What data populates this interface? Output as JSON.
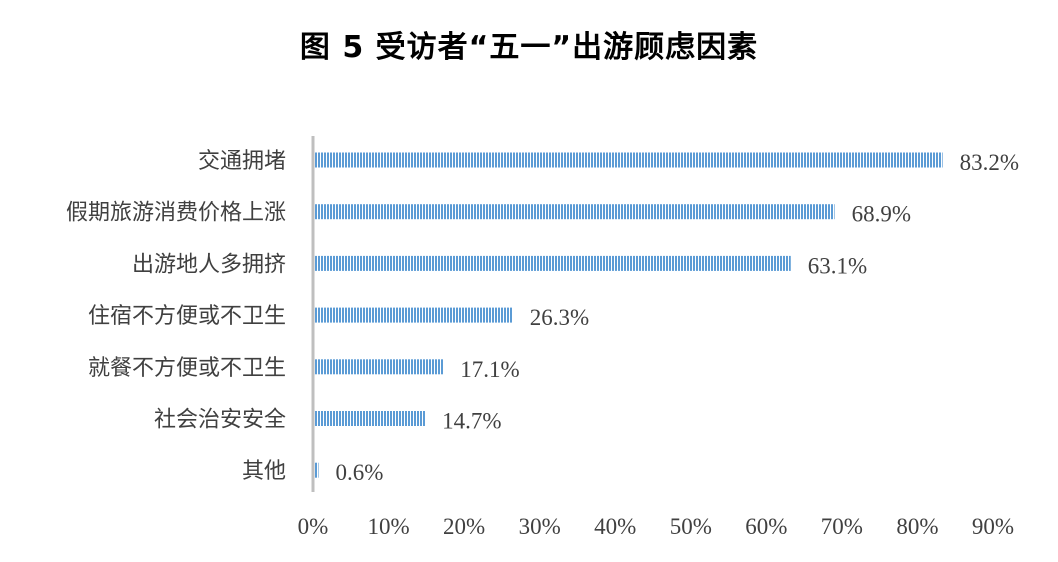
{
  "chart_data": {
    "type": "bar",
    "orientation": "horizontal",
    "title": "图 5  受访者“五一”出游顾虑因素",
    "categories": [
      "交通拥堵",
      "假期旅游消费价格上涨",
      "出游地人多拥挤",
      "住宿不方便或不卫生",
      "就餐不方便或不卫生",
      "社会治安安全",
      "其他"
    ],
    "values": [
      83.2,
      68.9,
      63.1,
      26.3,
      17.1,
      14.7,
      0.6
    ],
    "value_labels": [
      "83.2%",
      "68.9%",
      "63.1%",
      "26.3%",
      "17.1%",
      "14.7%",
      "0.6%"
    ],
    "xlim": [
      0,
      90
    ],
    "xticks": [
      0,
      10,
      20,
      30,
      40,
      50,
      60,
      70,
      80,
      90
    ],
    "xtick_labels": [
      "0%",
      "10%",
      "20%",
      "30%",
      "40%",
      "50%",
      "60%",
      "70%",
      "80%",
      "90%"
    ],
    "grid": false,
    "bar_color": "#5b9bd5",
    "bar_pattern": "vertical-stripes"
  }
}
